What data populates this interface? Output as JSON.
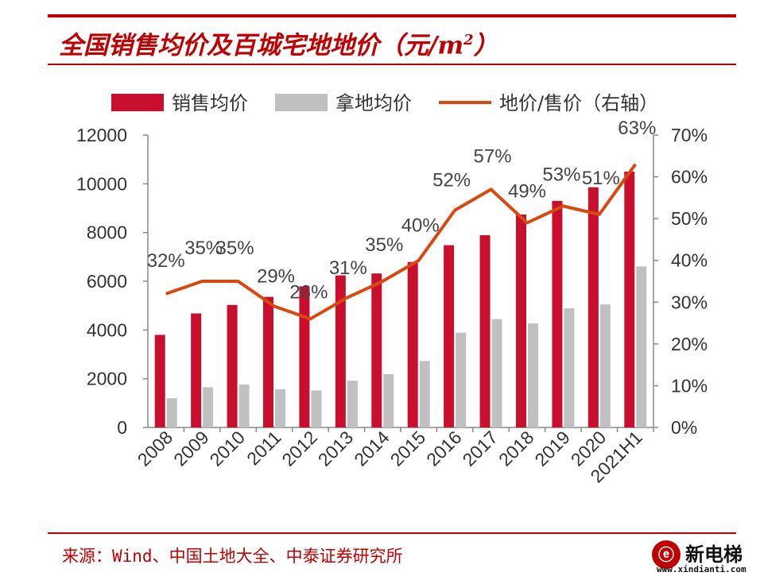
{
  "header": {
    "title": "全国销售均价及百城宅地地价（元/m",
    "title_sup": "2",
    "title_end": "）"
  },
  "source": "来源：Wind、中国土地大全、中泰证券研究所",
  "watermark": {
    "logo_text": "新电梯",
    "url": "www.xindianti.com"
  },
  "colors": {
    "accent": "#c00000",
    "sales_bar": "#c8102e",
    "land_bar": "#c0c0c0",
    "ratio_line": "#d9480f"
  },
  "chart_data": {
    "type": "bar",
    "categories": [
      "2008",
      "2009",
      "2010",
      "2011",
      "2012",
      "2013",
      "2014",
      "2015",
      "2016",
      "2017",
      "2018",
      "2019",
      "2020",
      "2021H1"
    ],
    "series": [
      {
        "name": "销售均价",
        "kind": "bar",
        "axis": "left",
        "values": [
          3800,
          4680,
          5030,
          5360,
          5790,
          6240,
          6320,
          6790,
          7480,
          7890,
          8740,
          9300,
          9860,
          10500
        ]
      },
      {
        "name": "拿地均价",
        "kind": "bar",
        "axis": "left",
        "values": [
          1200,
          1650,
          1760,
          1570,
          1520,
          1920,
          2190,
          2730,
          3890,
          4450,
          4270,
          4890,
          5050,
          6610
        ]
      },
      {
        "name": "地价/售价（右轴）",
        "kind": "line",
        "axis": "right",
        "values": [
          32,
          35,
          35,
          29,
          26,
          31,
          35,
          40,
          52,
          57,
          49,
          53,
          51,
          63
        ]
      }
    ],
    "data_labels": [
      "32%",
      "35%",
      "35%",
      "29%",
      "26%",
      "31%",
      "35%",
      "40%",
      "52%",
      "57%",
      "49%",
      "53%",
      "51%",
      "63%"
    ],
    "y_left": {
      "min": 0,
      "max": 12000,
      "ticks": [
        "0",
        "2000",
        "4000",
        "6000",
        "8000",
        "10000",
        "12000"
      ]
    },
    "y_right": {
      "min": 0,
      "max": 70,
      "ticks": [
        "0%",
        "10%",
        "20%",
        "30%",
        "40%",
        "50%",
        "60%",
        "70%"
      ]
    },
    "legend_position": "top",
    "grid": false
  }
}
